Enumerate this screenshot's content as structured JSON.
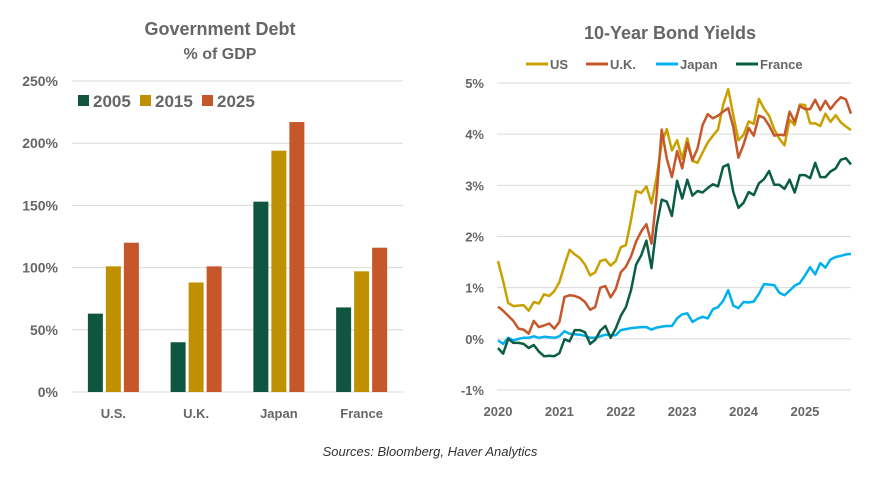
{
  "footer": {
    "source": "Sources: Bloomberg, Haver Analytics"
  },
  "chart_data": [
    {
      "type": "bar",
      "title": "Government Debt",
      "subtitle": "% of GDP",
      "categories": [
        "U.S.",
        "U.K.",
        "Japan",
        "France"
      ],
      "series": [
        {
          "name": "2005",
          "color": "#10553F",
          "values": [
            63,
            40,
            153,
            68
          ]
        },
        {
          "name": "2015",
          "color": "#BF9000",
          "values": [
            101,
            88,
            194,
            97
          ]
        },
        {
          "name": "2025",
          "color": "#C5572A",
          "values": [
            120,
            101,
            217,
            116
          ]
        }
      ],
      "ylim": [
        0,
        250
      ],
      "yticks": [
        "0%",
        "50%",
        "100%",
        "150%",
        "200%",
        "250%"
      ],
      "grid": true,
      "legend": "top-left"
    },
    {
      "type": "line",
      "title": "10-Year Bond Yields",
      "x_start": "2020-01",
      "frequency": "monthly",
      "xticks": [
        "2020",
        "2021",
        "2022",
        "2023",
        "2024",
        "2025"
      ],
      "ylim": [
        -1,
        5
      ],
      "yticks": [
        "-1%",
        "0%",
        "1%",
        "2%",
        "3%",
        "4%",
        "5%"
      ],
      "grid": true,
      "legend": "top",
      "series": [
        {
          "name": "US",
          "color": "#C9A000",
          "values": [
            1.52,
            1.13,
            0.7,
            0.64,
            0.65,
            0.66,
            0.55,
            0.72,
            0.69,
            0.87,
            0.84,
            0.93,
            1.11,
            1.44,
            1.74,
            1.65,
            1.58,
            1.45,
            1.24,
            1.3,
            1.52,
            1.55,
            1.43,
            1.52,
            1.79,
            1.83,
            2.32,
            2.89,
            2.85,
            2.98,
            2.65,
            3.15,
            3.83,
            4.1,
            3.68,
            3.88,
            3.52,
            3.92,
            3.48,
            3.44,
            3.64,
            3.84,
            3.97,
            4.09,
            4.57,
            4.88,
            4.37,
            3.88,
            3.99,
            4.25,
            4.2,
            4.69,
            4.5,
            4.36,
            4.09,
            3.91,
            3.78,
            4.28,
            4.18,
            4.58,
            4.57,
            4.21,
            4.21,
            4.16,
            4.4,
            4.24,
            4.37,
            4.23,
            4.15,
            4.08
          ]
        },
        {
          "name": "U.K.",
          "color": "#C5572A",
          "values": [
            0.63,
            0.55,
            0.45,
            0.35,
            0.2,
            0.18,
            0.1,
            0.35,
            0.23,
            0.26,
            0.3,
            0.2,
            0.33,
            0.82,
            0.85,
            0.84,
            0.8,
            0.72,
            0.57,
            0.62,
            1.0,
            1.03,
            0.81,
            0.97,
            1.3,
            1.41,
            1.61,
            1.9,
            2.1,
            2.24,
            1.86,
            2.8,
            4.09,
            3.52,
            3.16,
            3.67,
            3.33,
            3.83,
            3.49,
            3.72,
            4.18,
            4.39,
            4.31,
            4.36,
            4.44,
            4.51,
            4.14,
            3.54,
            3.8,
            4.12,
            3.97,
            4.36,
            4.32,
            4.17,
            3.97,
            3.99,
            3.98,
            4.44,
            4.24,
            4.55,
            4.49,
            4.49,
            4.67,
            4.47,
            4.65,
            4.49,
            4.62,
            4.72,
            4.68,
            4.4
          ]
        },
        {
          "name": "Japan",
          "color": "#00B0F0",
          "values": [
            -0.03,
            -0.1,
            0.02,
            -0.03,
            0,
            0.02,
            0.02,
            0.05,
            0.02,
            0.04,
            0.03,
            0.02,
            0.05,
            0.15,
            0.1,
            0.09,
            0.08,
            0.06,
            0.02,
            0.02,
            0.05,
            0.08,
            0.07,
            0.07,
            0.17,
            0.19,
            0.21,
            0.22,
            0.23,
            0.23,
            0.18,
            0.22,
            0.24,
            0.25,
            0.25,
            0.4,
            0.48,
            0.5,
            0.33,
            0.39,
            0.43,
            0.4,
            0.58,
            0.62,
            0.74,
            0.95,
            0.65,
            0.6,
            0.72,
            0.71,
            0.73,
            0.88,
            1.07,
            1.06,
            1.05,
            0.9,
            0.85,
            0.94,
            1.04,
            1.09,
            1.24,
            1.4,
            1.26,
            1.48,
            1.39,
            1.55,
            1.6,
            1.62,
            1.65,
            1.66
          ]
        },
        {
          "name": "France",
          "color": "#0B5E45",
          "values": [
            -0.18,
            -0.29,
            0.0,
            -0.08,
            -0.08,
            -0.1,
            -0.18,
            -0.12,
            -0.25,
            -0.34,
            -0.33,
            -0.34,
            -0.28,
            -0.01,
            -0.05,
            0.17,
            0.17,
            0.13,
            -0.1,
            -0.02,
            0.16,
            0.25,
            0.02,
            0.2,
            0.45,
            0.62,
            0.95,
            1.45,
            1.63,
            1.92,
            1.38,
            2.2,
            2.72,
            2.68,
            2.4,
            3.09,
            2.74,
            3.11,
            2.8,
            2.89,
            2.86,
            2.95,
            3.02,
            2.98,
            3.36,
            3.41,
            2.87,
            2.56,
            2.66,
            2.87,
            2.81,
            3.04,
            3.12,
            3.28,
            3.01,
            3.01,
            2.93,
            3.11,
            2.86,
            3.2,
            3.2,
            3.14,
            3.44,
            3.16,
            3.16,
            3.27,
            3.33,
            3.5,
            3.53,
            3.41
          ]
        }
      ]
    }
  ]
}
